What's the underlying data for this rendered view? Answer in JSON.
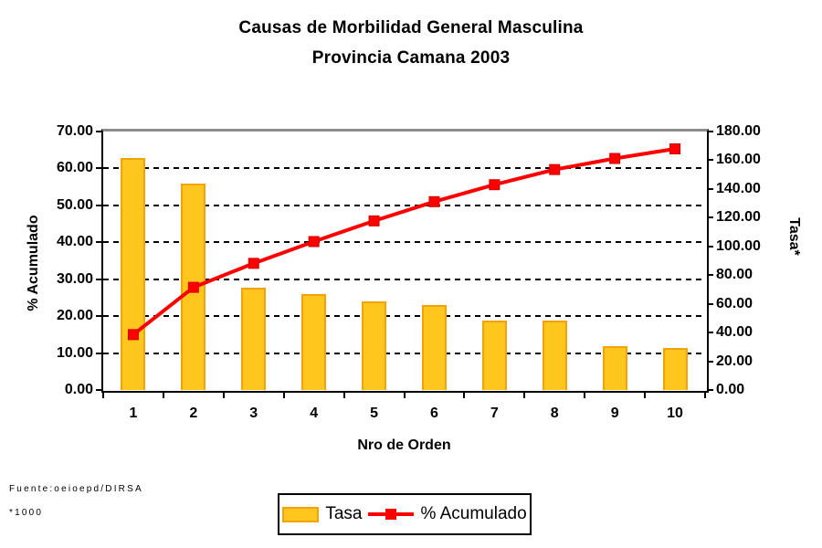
{
  "title": {
    "line1": "Causas de Morbilidad General Masculina",
    "line2": "Provincia Camana 2003"
  },
  "footer": {
    "source": "Fuente:oeioepd/DIRSA",
    "note": "*1000"
  },
  "legend": {
    "bar_label": "Tasa",
    "line_label": "% Acumulado"
  },
  "colors": {
    "bar_fill": "#FFC61E",
    "bar_border": "#F2A30A",
    "line": "#FE0000",
    "marker": "#FE0000",
    "grid": "#000000",
    "frame_top": "#8C8C8C"
  },
  "chart_data": {
    "type": "bar",
    "subtype": "pareto-combo (bars + cumulative line)",
    "title": "Causas de Morbilidad General Masculina — Provincia Camana 2003",
    "categories": [
      "1",
      "2",
      "3",
      "4",
      "5",
      "6",
      "7",
      "8",
      "9",
      "10"
    ],
    "xlabel": "Nro de Orden",
    "series": [
      {
        "name": "Tasa",
        "type": "bar",
        "axis": "right",
        "values": [
          161.5,
          143.5,
          71.0,
          67.0,
          62.0,
          59.0,
          48.5,
          48.5,
          30.5,
          29.0
        ]
      },
      {
        "name": "% Acumulado",
        "type": "line",
        "axis": "left",
        "values": [
          15.0,
          27.8,
          34.3,
          40.2,
          45.8,
          51.0,
          55.6,
          59.7,
          62.7,
          65.3
        ]
      }
    ],
    "left_axis": {
      "label": "% Acumulado",
      "min": 0,
      "max": 70,
      "step": 10,
      "tick_format": "2dp"
    },
    "right_axis": {
      "label": "Tasa*",
      "min": 0,
      "max": 180,
      "step": 20,
      "tick_format": "2dp"
    },
    "grid": "horizontal dashed black lines at each left-axis step (10..60)",
    "legend_position": "bottom-center-right, boxed"
  }
}
